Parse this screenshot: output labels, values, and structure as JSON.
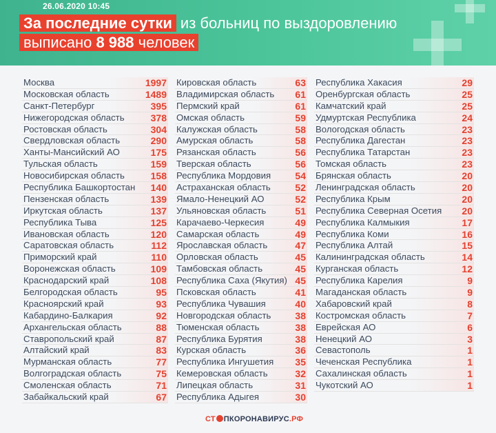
{
  "header": {
    "date": "26.06.2020 10:45",
    "line1_highlight": "За последние сутки",
    "line1_rest": "из больниц по выздоровлению",
    "line2_prefix": "выписано",
    "line2_number": "8 988",
    "line2_suffix": "человек"
  },
  "columns": [
    [
      {
        "name": "Москва",
        "value": "1997"
      },
      {
        "name": "Московская область",
        "value": "1489"
      },
      {
        "name": "Санкт-Петербург",
        "value": "395"
      },
      {
        "name": "Нижегородская область",
        "value": "378"
      },
      {
        "name": "Ростовская область",
        "value": "304"
      },
      {
        "name": "Свердловская область",
        "value": "290"
      },
      {
        "name": "Ханты-Мансийский АО",
        "value": "175"
      },
      {
        "name": "Тульская область",
        "value": "159"
      },
      {
        "name": "Новосибирская область",
        "value": "158"
      },
      {
        "name": "Республика Башкортостан",
        "value": "140"
      },
      {
        "name": "Пензенская область",
        "value": "139"
      },
      {
        "name": "Иркутская область",
        "value": "137"
      },
      {
        "name": "Республика Тыва",
        "value": "125"
      },
      {
        "name": "Ивановская область",
        "value": "120"
      },
      {
        "name": "Саратовская область",
        "value": "112"
      },
      {
        "name": "Приморский край",
        "value": "110"
      },
      {
        "name": "Воронежская область",
        "value": "109"
      },
      {
        "name": "Краснодарский край",
        "value": "108"
      },
      {
        "name": "Белгородская область",
        "value": "95"
      },
      {
        "name": "Красноярский край",
        "value": "93"
      },
      {
        "name": "Кабардино-Балкария",
        "value": "92"
      },
      {
        "name": "Архангельская область",
        "value": "88"
      },
      {
        "name": "Ставропольский край",
        "value": "87"
      },
      {
        "name": "Алтайский край",
        "value": "83"
      },
      {
        "name": "Мурманская область",
        "value": "77"
      },
      {
        "name": "Волгоградская область",
        "value": "75"
      },
      {
        "name": "Смоленская область",
        "value": "71"
      },
      {
        "name": "Забайкальский край",
        "value": "67"
      }
    ],
    [
      {
        "name": "Кировская область",
        "value": "63"
      },
      {
        "name": "Владимирская область",
        "value": "61"
      },
      {
        "name": "Пермский край",
        "value": "61"
      },
      {
        "name": "Омская область",
        "value": "59"
      },
      {
        "name": "Калужская область",
        "value": "58"
      },
      {
        "name": "Амурская область",
        "value": "58"
      },
      {
        "name": "Рязанская область",
        "value": "56"
      },
      {
        "name": "Тверская область",
        "value": "56"
      },
      {
        "name": "Республика Мордовия",
        "value": "54"
      },
      {
        "name": "Астраханская область",
        "value": "52"
      },
      {
        "name": "Ямало-Ненецкий АО",
        "value": "52"
      },
      {
        "name": "Ульяновская область",
        "value": "51"
      },
      {
        "name": "Карачаево-Черкесия",
        "value": "49"
      },
      {
        "name": "Самарская область",
        "value": "49"
      },
      {
        "name": "Ярославская область",
        "value": "47"
      },
      {
        "name": "Орловская область",
        "value": "45"
      },
      {
        "name": "Тамбовская область",
        "value": "45"
      },
      {
        "name": "Республика Саха (Якутия)",
        "value": "45"
      },
      {
        "name": "Псковская область",
        "value": "41"
      },
      {
        "name": "Республика Чувашия",
        "value": "40"
      },
      {
        "name": "Новгородская область",
        "value": "38"
      },
      {
        "name": "Тюменская область",
        "value": "38"
      },
      {
        "name": "Республика Бурятия",
        "value": "38"
      },
      {
        "name": "Курская область",
        "value": "36"
      },
      {
        "name": "Республика Ингушетия",
        "value": "35"
      },
      {
        "name": "Кемеровская область",
        "value": "32"
      },
      {
        "name": "Липецкая область",
        "value": "31"
      },
      {
        "name": "Республика Адыгея",
        "value": "30"
      }
    ],
    [
      {
        "name": "Республика Хакасия",
        "value": "29"
      },
      {
        "name": "Оренбургская область",
        "value": "25"
      },
      {
        "name": "Камчатский край",
        "value": "25"
      },
      {
        "name": "Удмуртская Республика",
        "value": "24"
      },
      {
        "name": "Вологодская область",
        "value": "23"
      },
      {
        "name": "Республика Дагестан",
        "value": "23"
      },
      {
        "name": "Республика Татарстан",
        "value": "23"
      },
      {
        "name": "Томская область",
        "value": "23"
      },
      {
        "name": "Брянская область",
        "value": "20"
      },
      {
        "name": "Ленинградская область",
        "value": "20"
      },
      {
        "name": "Республика Крым",
        "value": "20"
      },
      {
        "name": "Республика Северная Осетия",
        "value": "20"
      },
      {
        "name": "Республика Калмыкия",
        "value": "17"
      },
      {
        "name": "Республика Коми",
        "value": "16"
      },
      {
        "name": "Республика Алтай",
        "value": "15"
      },
      {
        "name": "Калининградская область",
        "value": "14"
      },
      {
        "name": "Курганская область",
        "value": "12"
      },
      {
        "name": "Республика Карелия",
        "value": "9"
      },
      {
        "name": "Магаданская область",
        "value": "9"
      },
      {
        "name": "Хабаровский край",
        "value": "8"
      },
      {
        "name": "Костромская область",
        "value": "7"
      },
      {
        "name": "Еврейская АО",
        "value": "6"
      },
      {
        "name": "Ненецкий АО",
        "value": "3"
      },
      {
        "name": "Севастополь",
        "value": "1"
      },
      {
        "name": "Чеченская Республика",
        "value": "1"
      },
      {
        "name": "Сахалинская область",
        "value": "1"
      },
      {
        "name": "Чукотский АО",
        "value": "1"
      }
    ]
  ],
  "logo": {
    "part1": "СТ",
    "part2": "ПКОРОНАВИРУС",
    "part3": ".РФ"
  },
  "colors": {
    "header_green": "#4cc59a",
    "accent_red": "#e3412f",
    "text_dark": "#3c4a5c"
  }
}
